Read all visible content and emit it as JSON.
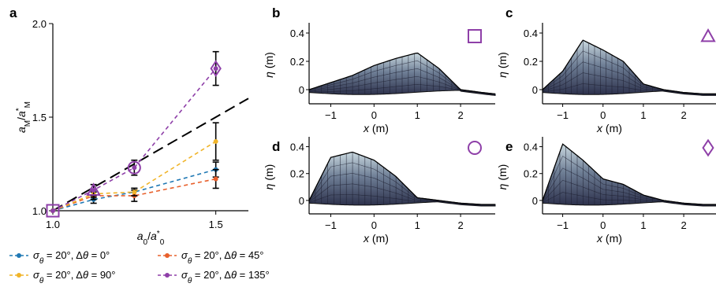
{
  "chart_data": [
    {
      "panel": "a",
      "type": "scatter",
      "xlabel": "a0/a*0",
      "ylabel": "aM/a*M",
      "xlim": [
        1.0,
        1.6
      ],
      "ylim": [
        1.0,
        2.0
      ],
      "x_ticks": [
        "1.0",
        "1.5"
      ],
      "y_ticks": [
        "1.0",
        "1.5",
        "2.0"
      ],
      "reference_line": {
        "style": "long-dash",
        "color": "#000000",
        "x": [
          1.0,
          1.6
        ],
        "y": [
          1.0,
          1.6
        ]
      },
      "series": [
        {
          "name": "σθ = 20°, Δθ = 0°",
          "color": "#1f78b4",
          "x": [
            1.0,
            1.125,
            1.25,
            1.5
          ],
          "y": [
            1.0,
            1.06,
            1.1,
            1.22
          ],
          "err": [
            0.0,
            0.02,
            0.02,
            0.04
          ]
        },
        {
          "name": "σθ = 20°, Δθ = 45°",
          "color": "#e8602c",
          "x": [
            1.0,
            1.125,
            1.25,
            1.5
          ],
          "y": [
            1.0,
            1.08,
            1.08,
            1.17
          ],
          "err": [
            0.0,
            0.02,
            0.03,
            0.05
          ]
        },
        {
          "name": "σθ = 20°, Δθ = 90°",
          "color": "#f0b429",
          "x": [
            1.0,
            1.125,
            1.25,
            1.5
          ],
          "y": [
            1.0,
            1.09,
            1.1,
            1.37
          ],
          "err": [
            0.0,
            0.02,
            0.02,
            0.1
          ]
        },
        {
          "name": "σθ = 20°, Δθ = 135°",
          "color": "#8e3fa8",
          "x": [
            1.0,
            1.125,
            1.25,
            1.5
          ],
          "y": [
            1.0,
            1.11,
            1.23,
            1.76
          ],
          "err": [
            0.0,
            0.03,
            0.04,
            0.09
          ],
          "markers": [
            "square",
            "triangle",
            "circle",
            "diamond"
          ]
        }
      ],
      "legend": "bottom"
    },
    {
      "panel": "b",
      "type": "area",
      "symbol": "square",
      "xlabel": "x (m)",
      "ylabel": "η (m)",
      "xlim": [
        -1.5,
        2.8
      ],
      "ylim": [
        -0.1,
        0.45
      ],
      "x_ticks": [
        "−1",
        "0",
        "1",
        "2"
      ],
      "y_ticks": [
        "0",
        "0.2",
        "0.4"
      ],
      "x": [
        -1.5,
        -1.0,
        -0.5,
        0.0,
        0.5,
        1.0,
        1.5,
        2.0,
        2.5,
        2.8
      ],
      "y": [
        0.0,
        0.05,
        0.1,
        0.17,
        0.22,
        0.26,
        0.15,
        0.0,
        -0.02,
        -0.03
      ]
    },
    {
      "panel": "c",
      "type": "area",
      "symbol": "triangle",
      "xlabel": "x (m)",
      "ylabel": "η (m)",
      "xlim": [
        -1.5,
        2.8
      ],
      "ylim": [
        -0.1,
        0.45
      ],
      "x_ticks": [
        "−1",
        "0",
        "1",
        "2"
      ],
      "y_ticks": [
        "0",
        "0.2",
        "0.4"
      ],
      "x": [
        -1.5,
        -1.0,
        -0.5,
        0.0,
        0.5,
        1.0,
        1.5,
        2.0,
        2.5,
        2.8
      ],
      "y": [
        0.0,
        0.13,
        0.35,
        0.28,
        0.2,
        0.04,
        0.0,
        -0.02,
        -0.03,
        -0.03
      ]
    },
    {
      "panel": "d",
      "type": "area",
      "symbol": "circle",
      "xlabel": "x (m)",
      "ylabel": "η (m)",
      "xlim": [
        -1.5,
        2.8
      ],
      "ylim": [
        -0.1,
        0.45
      ],
      "x_ticks": [
        "−1",
        "0",
        "1",
        "2"
      ],
      "y_ticks": [
        "0",
        "0.2",
        "0.4"
      ],
      "x": [
        -1.5,
        -1.0,
        -0.5,
        0.0,
        0.5,
        1.0,
        1.5,
        2.0,
        2.5,
        2.8
      ],
      "y": [
        0.0,
        0.32,
        0.36,
        0.3,
        0.18,
        0.02,
        0.0,
        -0.02,
        -0.03,
        -0.03
      ]
    },
    {
      "panel": "e",
      "type": "area",
      "symbol": "diamond",
      "xlabel": "x (m)",
      "ylabel": "η (m)",
      "xlim": [
        -1.5,
        2.8
      ],
      "ylim": [
        -0.1,
        0.45
      ],
      "x_ticks": [
        "−1",
        "0",
        "1",
        "2"
      ],
      "y_ticks": [
        "0",
        "0.2",
        "0.4"
      ],
      "x": [
        -1.5,
        -1.0,
        -0.5,
        0.0,
        0.5,
        1.0,
        1.5,
        2.0,
        2.5,
        2.8
      ],
      "y": [
        0.0,
        0.42,
        0.3,
        0.16,
        0.12,
        0.04,
        0.0,
        -0.02,
        -0.03,
        -0.03
      ]
    }
  ],
  "legend": [
    {
      "sigma": "20°",
      "delta": "0°",
      "color": "#1f78b4"
    },
    {
      "sigma": "20°",
      "delta": "45°",
      "color": "#e8602c"
    },
    {
      "sigma": "20°",
      "delta": "90°",
      "color": "#f0b429"
    },
    {
      "sigma": "20°",
      "delta": "135°",
      "color": "#8e3fa8"
    }
  ]
}
